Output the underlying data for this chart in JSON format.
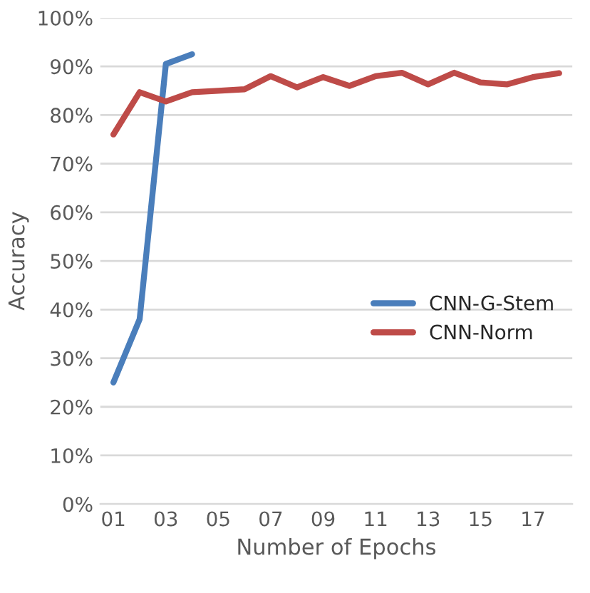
{
  "chart_data": {
    "type": "line",
    "xlabel": "Number of Epochs",
    "ylabel": "Accuracy",
    "categories": [
      "01",
      null,
      "03",
      null,
      "05",
      null,
      "07",
      null,
      "09",
      null,
      "11",
      null,
      "13",
      null,
      "15",
      null,
      "17",
      null
    ],
    "series": [
      {
        "name": "CNN-G-Stem",
        "color": "#4a7ebb",
        "values": [
          25,
          38,
          90.5,
          92.5,
          null,
          null,
          null,
          null,
          null,
          null,
          null,
          null,
          null,
          null,
          null,
          null,
          null,
          null
        ]
      },
      {
        "name": "CNN-Norm",
        "color": "#be4b48",
        "values": [
          76,
          84.7,
          82.8,
          84.7,
          85,
          85.3,
          88,
          85.7,
          87.8,
          86,
          88,
          88.7,
          86.3,
          88.7,
          86.7,
          86.3,
          87.8,
          88.6
        ]
      }
    ],
    "ylim": [
      0,
      100
    ],
    "yticks": [
      {
        "value": 0,
        "label": "0%"
      },
      {
        "value": 10,
        "label": "10%"
      },
      {
        "value": 20,
        "label": "20%"
      },
      {
        "value": 30,
        "label": "30%"
      },
      {
        "value": 40,
        "label": "40%"
      },
      {
        "value": 50,
        "label": "50%"
      },
      {
        "value": 60,
        "label": "60%"
      },
      {
        "value": 70,
        "label": "70%"
      },
      {
        "value": 80,
        "label": "80%"
      },
      {
        "value": 90,
        "label": "90%"
      },
      {
        "value": 100,
        "label": "100%"
      }
    ],
    "grid": "y",
    "legend": "center right",
    "marker": "none",
    "line_style": "solid"
  }
}
